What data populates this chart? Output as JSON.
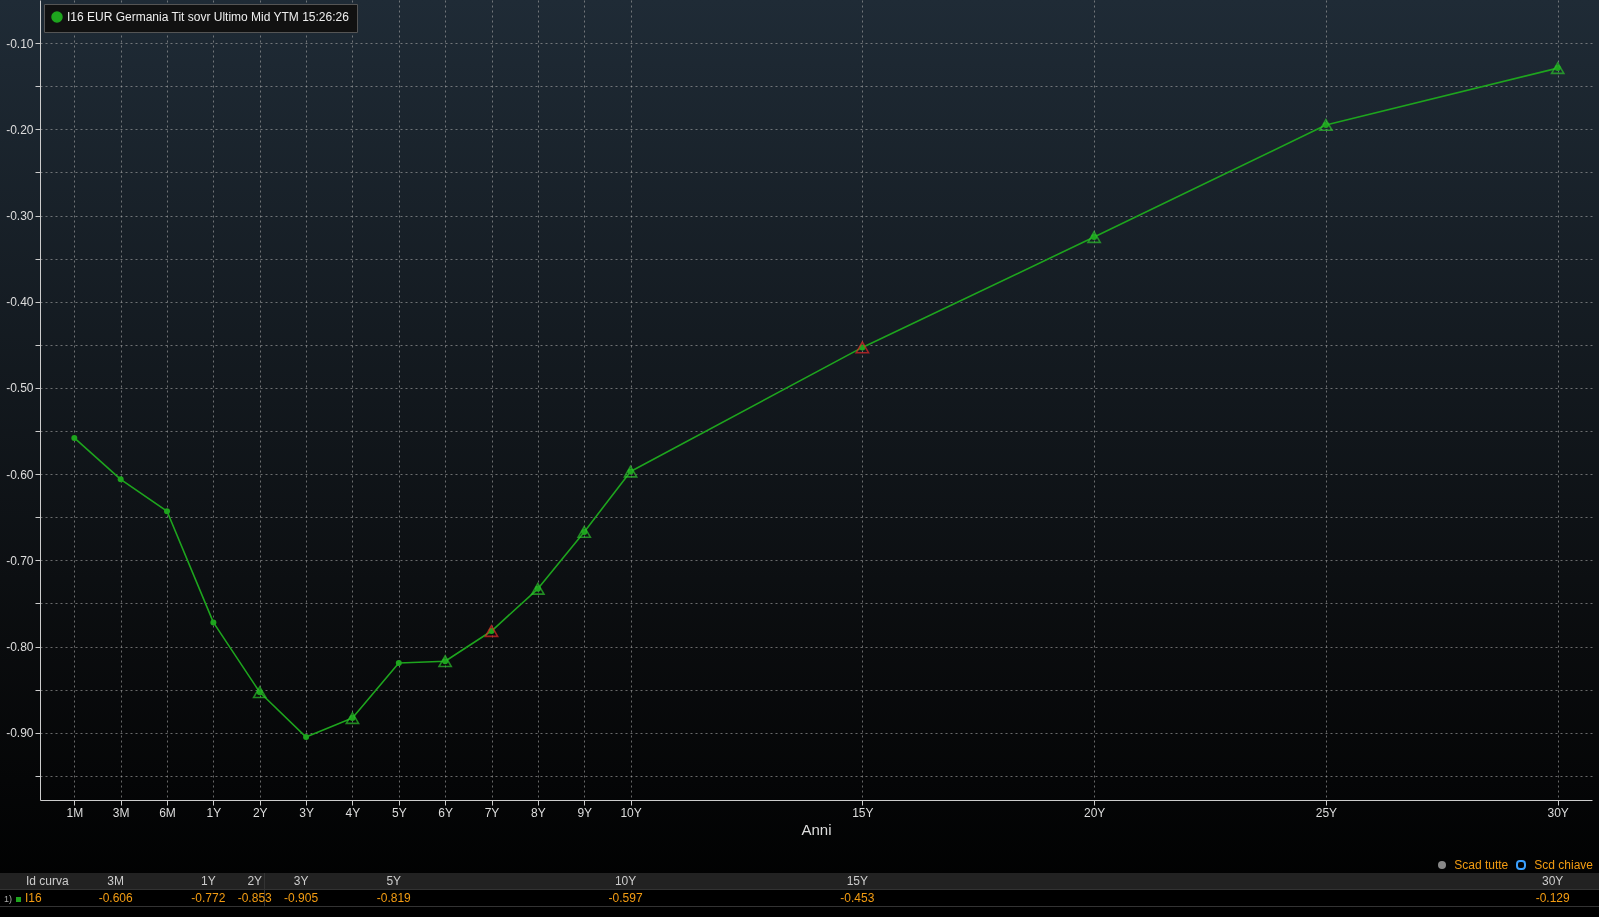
{
  "chart_data": {
    "type": "line",
    "xlabel": "Anni",
    "categories": [
      "1M",
      "3M",
      "6M",
      "1Y",
      "2Y",
      "3Y",
      "4Y",
      "5Y",
      "6Y",
      "7Y",
      "8Y",
      "9Y",
      "10Y",
      null,
      null,
      null,
      null,
      "15Y",
      null,
      null,
      null,
      null,
      "20Y",
      null,
      null,
      null,
      null,
      "25Y",
      null,
      null,
      null,
      null,
      "30Y"
    ],
    "ylim": [
      -0.978,
      -0.05
    ],
    "yticks": [
      {
        "value": -0.1,
        "label": "-0.10"
      },
      {
        "value": -0.15,
        "label": null
      },
      {
        "value": -0.2,
        "label": "-0.20"
      },
      {
        "value": -0.25,
        "label": null
      },
      {
        "value": -0.3,
        "label": "-0.30"
      },
      {
        "value": -0.35,
        "label": null
      },
      {
        "value": -0.4,
        "label": "-0.40"
      },
      {
        "value": -0.45,
        "label": null
      },
      {
        "value": -0.5,
        "label": "-0.50"
      },
      {
        "value": -0.55,
        "label": null
      },
      {
        "value": -0.6,
        "label": "-0.60"
      },
      {
        "value": -0.65,
        "label": null
      },
      {
        "value": -0.7,
        "label": "-0.70"
      },
      {
        "value": -0.75,
        "label": null
      },
      {
        "value": -0.8,
        "label": "-0.80"
      },
      {
        "value": -0.85,
        "label": null
      },
      {
        "value": -0.9,
        "label": "-0.90"
      },
      {
        "value": -0.95,
        "label": null
      }
    ],
    "grid": true,
    "legend": "top left",
    "series": [
      {
        "name": "I16 EUR Germania Tit sovr Ultimo Mid YTM 15:26:26",
        "color": "#1ea51e",
        "marker": "circle",
        "values": [
          -0.558,
          -0.606,
          -0.643,
          -0.772,
          -0.853,
          -0.905,
          -0.883,
          -0.819,
          -0.817,
          -0.782,
          -0.733,
          -0.667,
          -0.597,
          null,
          null,
          null,
          null,
          -0.453,
          null,
          null,
          null,
          null,
          -0.325,
          null,
          null,
          null,
          null,
          -0.195,
          null,
          null,
          null,
          null,
          -0.129
        ],
        "value_labels": [
          null,
          "-0.606",
          null,
          "-0.772",
          "-0.853",
          "-0.905",
          null,
          "-0.819",
          null,
          null,
          null,
          null,
          "-0.597",
          null,
          null,
          null,
          null,
          "-0.453",
          null,
          null,
          null,
          null,
          null,
          null,
          null,
          null,
          null,
          null,
          null,
          null,
          null,
          null,
          "-0.129"
        ]
      },
      {
        "type": "scatter",
        "color": "#2cc02c",
        "marker": "triangle",
        "x": [
          "2Y",
          "4Y",
          "6Y",
          "8Y",
          "9Y",
          "10Y",
          "20Y",
          "25Y",
          "30Y"
        ],
        "values": [
          -0.853,
          -0.883,
          -0.817,
          -0.733,
          -0.667,
          -0.597,
          -0.325,
          -0.195,
          -0.129
        ]
      },
      {
        "type": "scatter",
        "color": "#e02828",
        "marker": "triangle",
        "x": [
          "7Y",
          "15Y"
        ],
        "values": [
          -0.782,
          -0.453
        ]
      }
    ],
    "annotations": [
      "Id curva",
      "1)",
      "I16",
      "Scad tutte",
      "Scd chiave"
    ]
  }
}
